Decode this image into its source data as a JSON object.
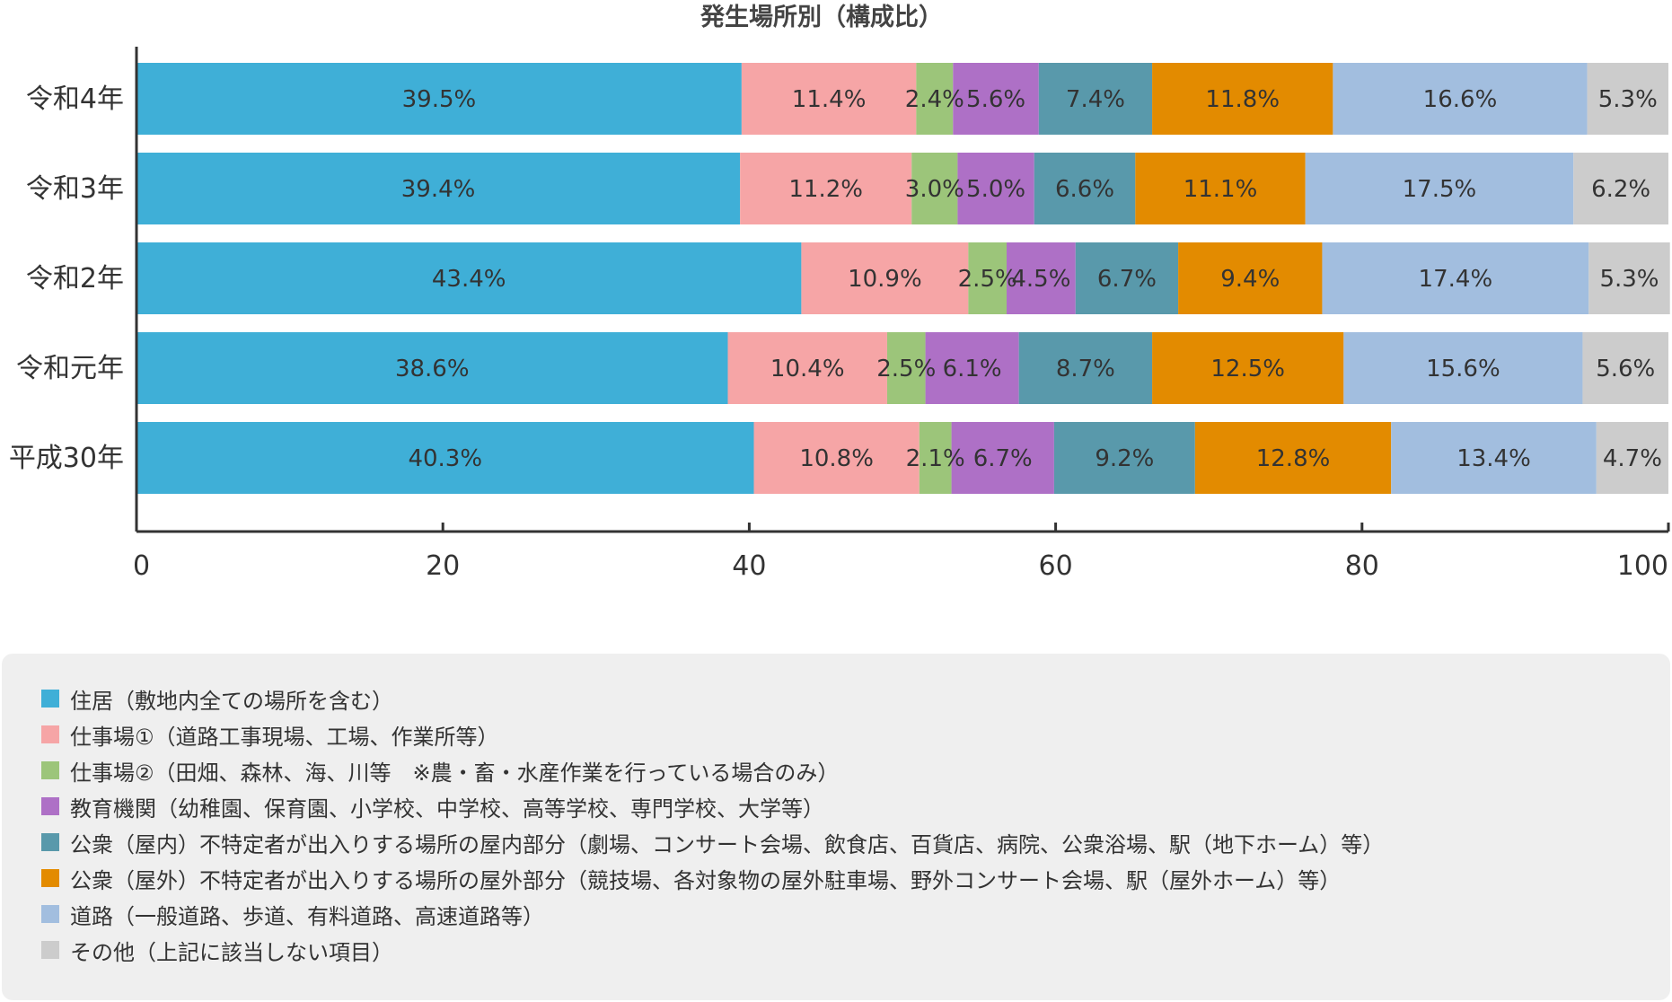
{
  "chart_data": {
    "type": "bar",
    "orientation": "horizontal",
    "stacked": true,
    "title": "発生場所別（構成比）",
    "categories": [
      "令和4年",
      "令和3年",
      "令和2年",
      "令和元年",
      "平成30年"
    ],
    "xlim": [
      0,
      100
    ],
    "xticks": [
      "0",
      "20",
      "40",
      "60",
      "80",
      "100"
    ],
    "grid": false,
    "legend_position": "bottom",
    "series": [
      {
        "name": "住居（敷地内全ての場所を含む）",
        "color": "#3fafd7",
        "values": [
          39.5,
          39.4,
          43.4,
          38.6,
          40.3
        ],
        "labels": [
          "39.5%",
          "39.4%",
          "43.4%",
          "38.6%",
          "40.3%"
        ]
      },
      {
        "name": "仕事場①（道路工事現場、工場、作業所等）",
        "color": "#f6a5a6",
        "values": [
          11.4,
          11.2,
          10.9,
          10.4,
          10.8
        ],
        "labels": [
          "11.4%",
          "11.2%",
          "10.9%",
          "10.4%",
          "10.8%"
        ]
      },
      {
        "name": "仕事場②（田畑、森林、海、川等　※農・畜・水産作業を行っている場合のみ）",
        "color": "#9cc57a",
        "values": [
          2.4,
          3.0,
          2.5,
          2.5,
          2.1
        ],
        "labels": [
          "2.4%",
          "3.0%",
          "2.5%",
          "2.5%",
          "2.1%"
        ]
      },
      {
        "name": "教育機関（幼稚園、保育園、小学校、中学校、高等学校、専門学校、大学等）",
        "color": "#ae70c6",
        "values": [
          5.6,
          5.0,
          4.5,
          6.1,
          6.7
        ],
        "labels": [
          "5.6%",
          "5.0%",
          "4.5%",
          "6.1%",
          "6.7%"
        ]
      },
      {
        "name": "公衆（屋内）不特定者が出入りする場所の屋内部分（劇場、コンサート会場、飲食店、百貨店、病院、公衆浴場、駅（地下ホーム）等）",
        "color": "#5999ab",
        "values": [
          7.4,
          6.6,
          6.7,
          8.7,
          9.2
        ],
        "labels": [
          "7.4%",
          "6.6%",
          "6.7%",
          "8.7%",
          "9.2%"
        ]
      },
      {
        "name": "公衆（屋外）不特定者が出入りする場所の屋外部分（競技場、各対象物の屋外駐車場、野外コンサート会場、駅（屋外ホーム）等）",
        "color": "#e38b00",
        "values": [
          11.8,
          11.1,
          9.4,
          12.5,
          12.8
        ],
        "labels": [
          "11.8%",
          "11.1%",
          "9.4%",
          "12.5%",
          "12.8%"
        ]
      },
      {
        "name": "道路（一般道路、歩道、有料道路、高速道路等）",
        "color": "#a2bedf",
        "values": [
          16.6,
          17.5,
          17.4,
          15.6,
          13.4
        ],
        "labels": [
          "16.6%",
          "17.5%",
          "17.4%",
          "15.6%",
          "13.4%"
        ]
      },
      {
        "name": "その他（上記に該当しない項目）",
        "color": "#cccccc",
        "values": [
          5.3,
          6.2,
          5.3,
          5.6,
          4.7
        ],
        "labels": [
          "5.3%",
          "6.2%",
          "5.3%",
          "5.6%",
          "4.7%"
        ]
      }
    ]
  }
}
